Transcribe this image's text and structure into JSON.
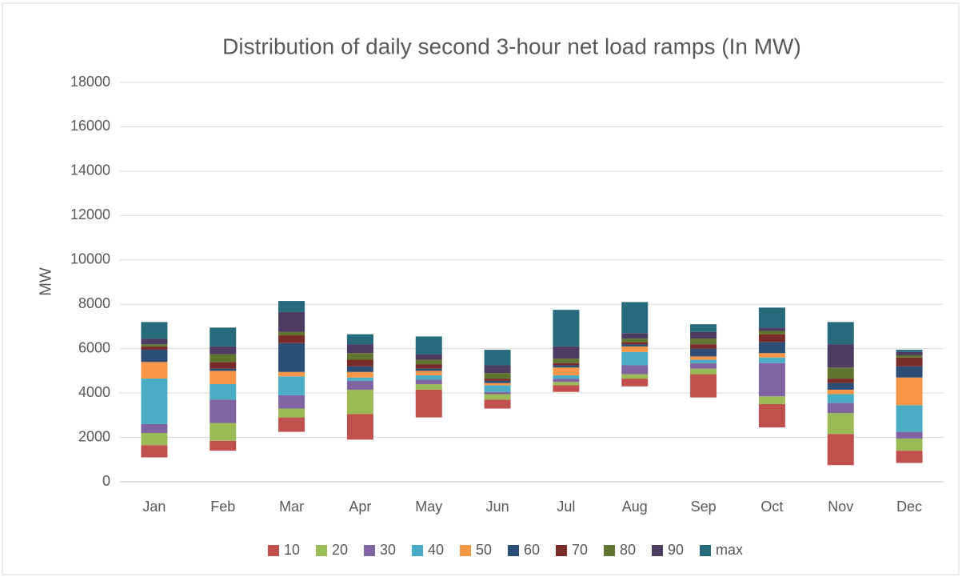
{
  "chart_data": {
    "type": "floating_stacked_bar",
    "title": "Distribution of daily second 3-hour net load ramps (In MW)",
    "y_label": "MW",
    "categories": [
      "Jan",
      "Feb",
      "Mar",
      "Apr",
      "May",
      "Jun",
      "Jul",
      "Aug",
      "Sep",
      "Oct",
      "Nov",
      "Dec"
    ],
    "series": [
      {
        "color": "none",
        "values": [
          1100,
          1400,
          2250,
          1900,
          2900,
          3300,
          4050,
          4300,
          3800,
          2450,
          750,
          850
        ]
      },
      {
        "name": "10",
        "color": "#c0504d",
        "values": [
          550,
          450,
          650,
          1150,
          1250,
          400,
          300,
          350,
          1050,
          1050,
          1400,
          550
        ]
      },
      {
        "name": "20",
        "color": "#9bbb59",
        "values": [
          550,
          800,
          400,
          1100,
          250,
          250,
          150,
          200,
          250,
          350,
          950,
          550
        ]
      },
      {
        "name": "30",
        "color": "#8064a2",
        "values": [
          400,
          1050,
          600,
          400,
          200,
          100,
          150,
          400,
          250,
          1500,
          450,
          300
        ]
      },
      {
        "name": "40",
        "color": "#4bacc6",
        "values": [
          2050,
          700,
          850,
          150,
          200,
          300,
          150,
          600,
          150,
          250,
          400,
          1200
        ]
      },
      {
        "name": "50",
        "color": "#f79646",
        "values": [
          750,
          600,
          200,
          250,
          200,
          100,
          350,
          250,
          150,
          200,
          200,
          1250
        ]
      },
      {
        "name": "60",
        "color": "#2c4d75",
        "values": [
          550,
          100,
          1300,
          250,
          100,
          100,
          100,
          100,
          350,
          500,
          300,
          500
        ]
      },
      {
        "name": "70",
        "color": "#772c2a",
        "values": [
          150,
          300,
          350,
          300,
          200,
          100,
          100,
          100,
          200,
          350,
          200,
          400
        ]
      },
      {
        "name": "80",
        "color": "#5f7530",
        "values": [
          100,
          350,
          150,
          300,
          200,
          250,
          200,
          150,
          250,
          150,
          500,
          100
        ]
      },
      {
        "name": "90",
        "color": "#4d3b62",
        "values": [
          250,
          350,
          900,
          400,
          250,
          350,
          550,
          250,
          300,
          150,
          1050,
          150
        ]
      },
      {
        "name": "max",
        "color": "#276a7c",
        "values": [
          750,
          850,
          500,
          450,
          800,
          700,
          1650,
          1400,
          350,
          900,
          1000,
          100
        ]
      }
    ],
    "ylim": [
      0,
      18000
    ],
    "yticks": [
      0,
      2000,
      4000,
      6000,
      8000,
      10000,
      12000,
      14000,
      16000,
      18000
    ],
    "grid": true,
    "legend": "bottom"
  }
}
